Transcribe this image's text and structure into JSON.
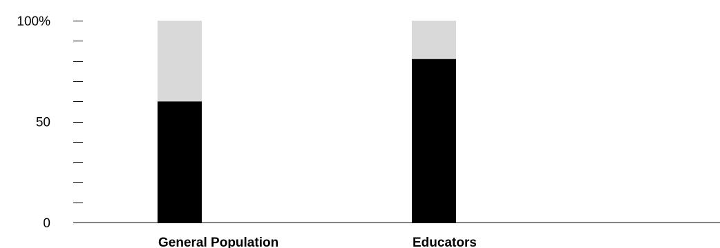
{
  "chart_data": {
    "type": "bar",
    "stacked": true,
    "categories": [
      "General Population",
      "Educators"
    ],
    "series": [
      {
        "values": [
          60,
          81
        ],
        "color": "#000000"
      },
      {
        "values": [
          40,
          19
        ],
        "color": "#d9d9d9"
      }
    ],
    "ylim": [
      0,
      100
    ],
    "y_ticks": [
      {
        "value": 0,
        "label": "0"
      },
      {
        "value": 50,
        "label": "50"
      },
      {
        "value": 100,
        "label": "100%"
      }
    ],
    "minor_tick_step": 10,
    "grid": false,
    "legend": "none"
  }
}
